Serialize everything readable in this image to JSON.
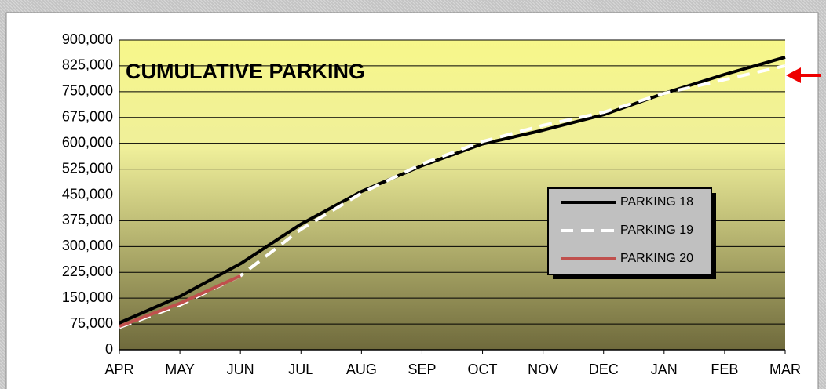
{
  "chart_data": {
    "type": "line",
    "title": "CUMULATIVE PARKING",
    "categories": [
      "APR",
      "MAY",
      "JUN",
      "JUL",
      "AUG",
      "SEP",
      "OCT",
      "NOV",
      "DEC",
      "JAN",
      "FEB",
      "MAR"
    ],
    "series": [
      {
        "name": "PARKING 18",
        "color": "#000000",
        "style": "solid",
        "values": [
          78000,
          155000,
          250000,
          365000,
          460000,
          535000,
          598000,
          638000,
          683000,
          745000,
          800000,
          850000
        ]
      },
      {
        "name": "PARKING 19",
        "color": "#ffffff",
        "style": "dashed",
        "values": [
          65000,
          130000,
          215000,
          350000,
          455000,
          540000,
          605000,
          652000,
          690000,
          745000,
          785000,
          825000
        ]
      },
      {
        "name": "PARKING 20",
        "color": "#c0504d",
        "style": "solid",
        "values": [
          68000,
          135000,
          215000,
          null,
          null,
          null,
          null,
          null,
          null,
          null,
          null,
          null
        ]
      }
    ],
    "ylim": [
      0,
      900000
    ],
    "yticks": [
      0,
      {
        "value": 75000,
        "label": "75,000"
      },
      {
        "value": 150000,
        "label": "150,000"
      },
      {
        "value": 225000,
        "label": "225,000"
      },
      {
        "value": 300000,
        "label": "300,000"
      },
      {
        "value": 375000,
        "label": "375,000"
      },
      {
        "value": 450000,
        "label": "450,000"
      },
      {
        "value": 525000,
        "label": "525,000"
      },
      {
        "value": 600000,
        "label": "600,000"
      },
      {
        "value": 675000,
        "label": "675,000"
      },
      {
        "value": 750000,
        "label": "750,000"
      },
      {
        "value": 825000,
        "label": "825,000"
      },
      {
        "value": 900000,
        "label": "900,000"
      }
    ],
    "grid": true
  }
}
